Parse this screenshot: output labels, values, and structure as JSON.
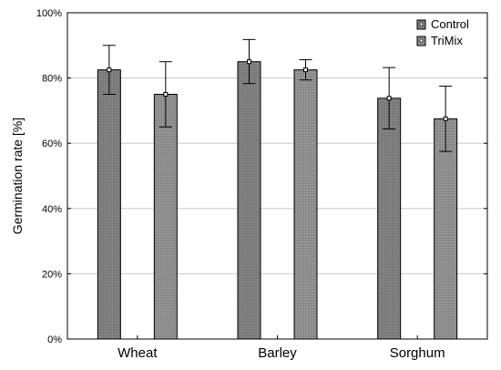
{
  "chart_data": {
    "type": "bar",
    "title": "",
    "xlabel": "",
    "ylabel": "Germination rate [%]",
    "ylim": [
      0,
      100
    ],
    "y_ticks": [
      0,
      20,
      40,
      60,
      80,
      100
    ],
    "y_tick_labels": [
      "0%",
      "20%",
      "40%",
      "60%",
      "80%",
      "100%"
    ],
    "grid": "horizontal",
    "legend_position": "top-right",
    "categories": [
      "Wheat",
      "Barley",
      "Sorghum"
    ],
    "series": [
      {
        "name": "Control",
        "values": [
          82.5,
          85,
          73.8
        ],
        "error_low": [
          75,
          78.3,
          64.4
        ],
        "error_high": [
          90,
          91.8,
          83.2
        ],
        "color": "#808080"
      },
      {
        "name": "TriMix",
        "values": [
          75,
          82.5,
          67.5
        ],
        "error_low": [
          65,
          79.4,
          57.5
        ],
        "error_high": [
          85,
          85.6,
          77.5
        ],
        "color": "#8c8c8c"
      }
    ]
  }
}
